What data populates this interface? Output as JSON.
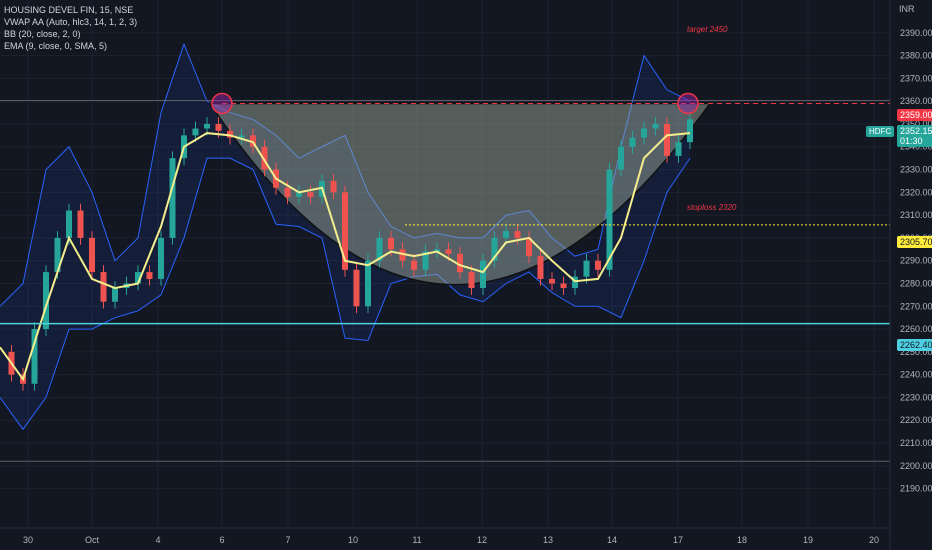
{
  "legend": {
    "symbol_line": "HOUSING DEVEL FIN, 15, NSE",
    "indicators": [
      "VWAP AA (Auto, hlc3, 14, 1, 2, 3)",
      "BB (20, close, 2, 0)",
      "EMA (9, close, 0, SMA, 5)"
    ]
  },
  "currency": "INR",
  "annotations": {
    "target": "target 2450",
    "stoploss": "stoploss 2320"
  },
  "price_tags": {
    "resistance": "2359.00",
    "current_symbol": "HDFC",
    "current_price": "2352.15",
    "countdown": "01:30",
    "mid_level": "2305.70",
    "support": "2262.40"
  },
  "colors": {
    "background": "#131722",
    "up": "#26a69a",
    "down": "#ef5350",
    "ema": "#f5ee8c",
    "bb_band": "#2962ff",
    "support": "#4dd0e1",
    "resistance": "#f23645",
    "mid_level": "#ffeb3b",
    "cup_fill": "#a5b4a0"
  },
  "chart_data": {
    "type": "line",
    "title": "HOUSING DEVEL FIN, 15, NSE",
    "xlabel": "",
    "ylabel": "",
    "x_ticks": [
      "30",
      "Oct",
      "4",
      "6",
      "7",
      "10",
      "11",
      "12",
      "13",
      "14",
      "17",
      "18",
      "19",
      "20"
    ],
    "y_ticks": [
      2190,
      2200,
      2210,
      2220,
      2230,
      2240,
      2250,
      2260,
      2270,
      2280,
      2290,
      2300,
      2310,
      2320,
      2330,
      2340,
      2350,
      2360,
      2370,
      2380,
      2390
    ],
    "ylim": [
      2185,
      2400
    ],
    "horizontal_levels": {
      "resistance": 2359.0,
      "mid_level": 2305.7,
      "support": 2262.4
    },
    "series": [
      {
        "name": "Close",
        "x": [
          0,
          0.5,
          1,
          1.5,
          2,
          2.5,
          3,
          3.5,
          4,
          4.5,
          5,
          5.5,
          6,
          6.5,
          7,
          7.5,
          8,
          8.5,
          9,
          9.5,
          10,
          10.5,
          11,
          11.5,
          12,
          12.5,
          13,
          13.5,
          14,
          14.5,
          15,
          15.5,
          16,
          16.5,
          17,
          17.5,
          18,
          18.5,
          19,
          19.5,
          20,
          20.5,
          21,
          21.5,
          22,
          22.5,
          23,
          23.5,
          24,
          24.5,
          25,
          25.5,
          26,
          26.5,
          27,
          27.5,
          28,
          28.5,
          29,
          29.5,
          30
        ],
        "values": [
          2250,
          2240,
          2236,
          2260,
          2285,
          2300,
          2312,
          2300,
          2285,
          2272,
          2278,
          2280,
          2285,
          2282,
          2300,
          2335,
          2345,
          2348,
          2350,
          2347,
          2344,
          2345,
          2340,
          2330,
          2322,
          2318,
          2320,
          2318,
          2325,
          2320,
          2286,
          2270,
          2290,
          2300,
          2295,
          2290,
          2286,
          2294,
          2295,
          2293,
          2285,
          2278,
          2290,
          2300,
          2303,
          2300,
          2292,
          2282,
          2280,
          2278,
          2283,
          2290,
          2286,
          2330,
          2340,
          2344,
          2348,
          2350,
          2336,
          2342,
          2352
        ]
      },
      {
        "name": "EMA 9",
        "x": [
          0,
          1,
          2,
          3,
          4,
          5,
          6,
          7,
          8,
          9,
          10,
          11,
          12,
          13,
          14,
          15,
          16,
          17,
          18,
          19,
          20,
          21,
          22,
          23,
          24,
          25,
          26,
          27,
          28,
          29,
          30
        ],
        "values": [
          2252,
          2238,
          2270,
          2300,
          2282,
          2278,
          2280,
          2305,
          2340,
          2346,
          2345,
          2342,
          2326,
          2320,
          2322,
          2290,
          2288,
          2294,
          2292,
          2294,
          2288,
          2285,
          2298,
          2300,
          2290,
          2281,
          2282,
          2300,
          2335,
          2345,
          2346
        ]
      },
      {
        "name": "BB Upper",
        "x": [
          0,
          1,
          2,
          3,
          4,
          5,
          6,
          7,
          8,
          9,
          10,
          11,
          12,
          13,
          14,
          15,
          16,
          17,
          18,
          19,
          20,
          21,
          22,
          23,
          24,
          25,
          26,
          27,
          28,
          29,
          30
        ],
        "values": [
          2270,
          2280,
          2330,
          2340,
          2320,
          2290,
          2300,
          2355,
          2385,
          2360,
          2355,
          2352,
          2345,
          2335,
          2340,
          2345,
          2320,
          2305,
          2300,
          2302,
          2300,
          2300,
          2310,
          2312,
          2300,
          2292,
          2295,
          2340,
          2380,
          2365,
          2360
        ]
      },
      {
        "name": "BB Lower",
        "x": [
          0,
          1,
          2,
          3,
          4,
          5,
          6,
          7,
          8,
          9,
          10,
          11,
          12,
          13,
          14,
          15,
          16,
          17,
          18,
          19,
          20,
          21,
          22,
          23,
          24,
          25,
          26,
          27,
          28,
          29,
          30
        ],
        "values": [
          2230,
          2216,
          2230,
          2260,
          2260,
          2265,
          2268,
          2275,
          2300,
          2335,
          2335,
          2330,
          2306,
          2305,
          2300,
          2256,
          2255,
          2280,
          2283,
          2284,
          2275,
          2272,
          2280,
          2285,
          2276,
          2270,
          2270,
          2265,
          2290,
          2320,
          2335
        ]
      }
    ]
  }
}
